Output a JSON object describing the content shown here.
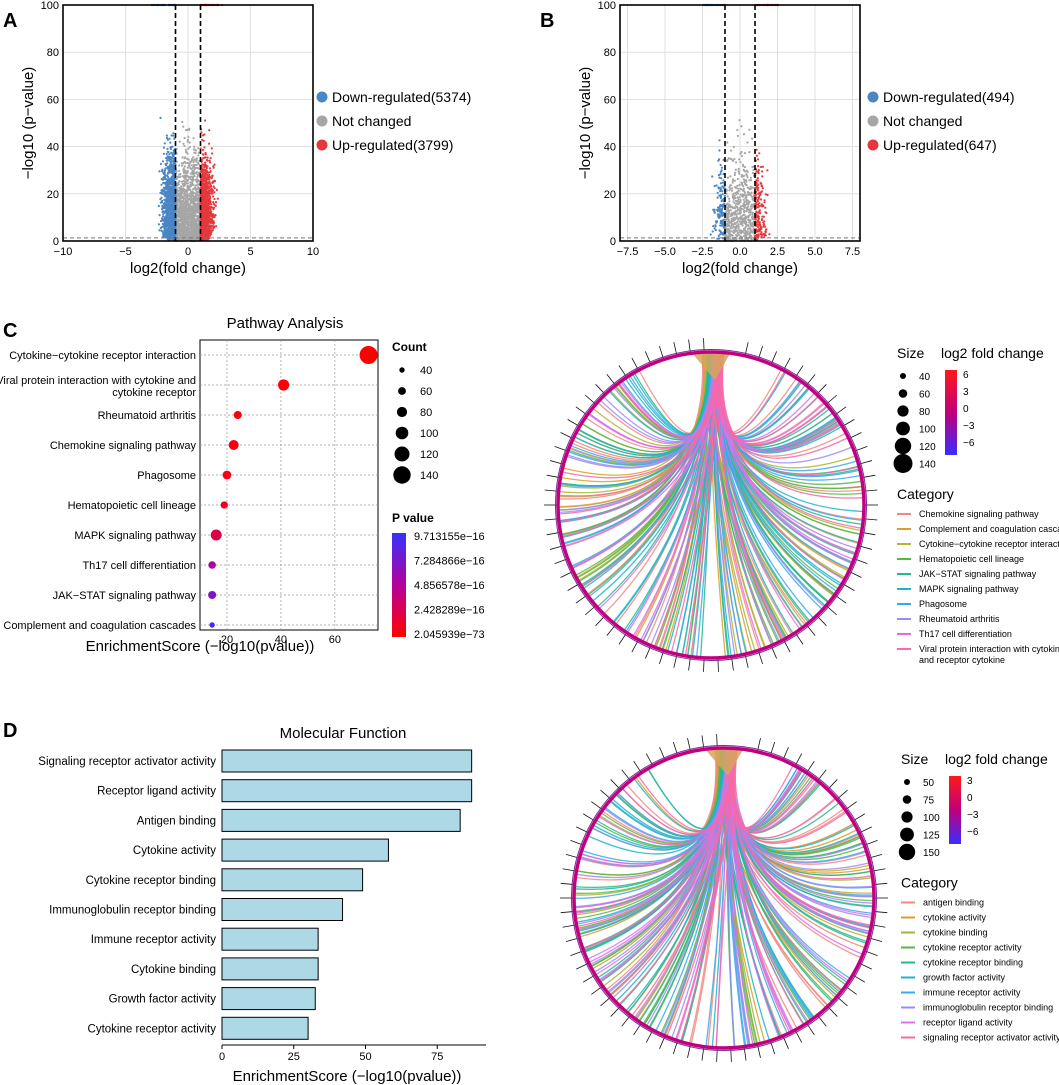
{
  "colors": {
    "down": "#4a86c5",
    "not_changed": "#a6a6a6",
    "up": "#e3383d",
    "bar_fill": "#add8e6",
    "pvalue_high": "#3333ff",
    "pvalue_low": "#ff0000"
  },
  "chart_data": [
    {
      "panel": "A",
      "type": "scatter",
      "title": "",
      "xlabel": "log2(fold change)",
      "ylabel": "−log10 (p−value)",
      "xlim": [
        -10,
        10
      ],
      "ylim": [
        0,
        100
      ],
      "xticks": [
        "−10",
        "−5",
        "0",
        "5",
        "10"
      ],
      "yticks": [
        "0",
        "20",
        "40",
        "60",
        "80",
        "100"
      ],
      "thresholds": {
        "fold_change": [
          -1,
          1
        ],
        "pvalue": 1.3
      },
      "legend": [
        {
          "label": "Down-regulated(5374)",
          "color": "#4a86c5"
        },
        {
          "label": "Not changed",
          "color": "#a6a6a6"
        },
        {
          "label": "Up-regulated(3799)",
          "color": "#e3383d"
        }
      ],
      "series": [
        {
          "name": "Down-regulated",
          "count": 5374
        },
        {
          "name": "Not changed"
        },
        {
          "name": "Up-regulated",
          "count": 3799
        }
      ]
    },
    {
      "panel": "B",
      "type": "scatter",
      "title": "",
      "xlabel": "log2(fold change)",
      "ylabel": "−log10 (p−value)",
      "xlim": [
        -8,
        8
      ],
      "ylim": [
        0,
        100
      ],
      "xticks": [
        "−7.5",
        "−5.0",
        "−2.5",
        "0.0",
        "2.5",
        "5.0",
        "7.5"
      ],
      "yticks": [
        "0",
        "20",
        "40",
        "60",
        "80",
        "100"
      ],
      "thresholds": {
        "fold_change": [
          -1,
          1
        ],
        "pvalue": 1.3
      },
      "legend": [
        {
          "label": "Down-regulated(494)",
          "color": "#4a86c5"
        },
        {
          "label": "Not changed",
          "color": "#a6a6a6"
        },
        {
          "label": "Up-regulated(647)",
          "color": "#e3383d"
        }
      ],
      "series": [
        {
          "name": "Down-regulated",
          "count": 494
        },
        {
          "name": "Not changed"
        },
        {
          "name": "Up-regulated",
          "count": 647
        }
      ]
    },
    {
      "panel": "C",
      "type": "scatter",
      "title": "Pathway Analysis",
      "xlabel": "EnrichmentScore (−log10(pvalue))",
      "xlim": [
        10,
        76
      ],
      "xticks": [
        20,
        40,
        60
      ],
      "categories": [
        "Cytokine−cytokine receptor interaction",
        "Viral protein interaction with cytokine and cytokine receptor",
        "Rheumatoid arthritis",
        "Chemokine signaling pathway",
        "Phagosome",
        "Hematopoietic cell lineage",
        "MAPK signaling pathway",
        "Th17 cell differentiation",
        "JAK−STAT signaling pathway",
        "Complement and coagulation cascades"
      ],
      "values": [
        72.5,
        41,
        24,
        22.5,
        20,
        19,
        16,
        14.5,
        14.5,
        14.5
      ],
      "counts": [
        145,
        88,
        62,
        78,
        68,
        56,
        86,
        58,
        62,
        40
      ],
      "p_fraction": [
        0.0,
        0.02,
        0.03,
        0.05,
        0.08,
        0.12,
        0.22,
        0.55,
        0.72,
        0.95
      ],
      "size_legend_title": "Count",
      "size_legend": [
        "40",
        "60",
        "80",
        "100",
        "120",
        "140"
      ],
      "color_legend_title": "P value",
      "color_legend": [
        "9.713155e−16",
        "7.284866e−16",
        "4.856578e−16",
        "2.428289e−16",
        "2.045939e−73"
      ]
    },
    {
      "panel": "C-chord",
      "type": "chord",
      "size_legend_title": "Size",
      "size_legend": [
        "40",
        "60",
        "80",
        "100",
        "120",
        "140"
      ],
      "color_legend_title": "log2 fold change",
      "color_ticks": [
        "6",
        "3",
        "0",
        "−3",
        "−6"
      ],
      "category_title": "Category",
      "categories": [
        {
          "label": "Chemokine signaling pathway",
          "color": "#f08a80"
        },
        {
          "label": "Complement and coagulation cascades",
          "color": "#d6a12b"
        },
        {
          "label": "Cytokine−cytokine receptor interaction",
          "color": "#b0b437"
        },
        {
          "label": "Hematopoietic cell lineage",
          "color": "#56b745"
        },
        {
          "label": "JAK−STAT signaling pathway",
          "color": "#23b98e"
        },
        {
          "label": "MAPK signaling pathway",
          "color": "#1db5c8"
        },
        {
          "label": "Phagosome",
          "color": "#37a9ec"
        },
        {
          "label": "Rheumatoid arthritis",
          "color": "#9c8cf0"
        },
        {
          "label": "Th17 cell differentiation",
          "color": "#e06fe6"
        },
        {
          "label": "Viral protein interaction with cytokine and receptor cytokine",
          "color": "#f56aa8"
        }
      ]
    },
    {
      "panel": "D",
      "type": "bar",
      "orientation": "horizontal",
      "title": "Molecular Function",
      "xlabel": "EnrichmentScore (−log10(pvalue))",
      "xlim": [
        0,
        92
      ],
      "xticks": [
        0,
        25,
        50,
        75
      ],
      "categories": [
        "Signaling receptor activator activity",
        "Receptor ligand activity",
        "Antigen binding",
        "Cytokine activity",
        "Cytokine receptor binding",
        "Immunoglobulin receptor binding",
        "Immune receptor activity",
        "Cytokine binding",
        "Growth factor activity",
        "Cytokine receptor activity"
      ],
      "values": [
        87,
        87,
        83,
        58,
        49,
        42,
        33.5,
        33.5,
        32.5,
        30
      ]
    },
    {
      "panel": "D-chord",
      "type": "chord",
      "size_legend_title": "Size",
      "size_legend": [
        "50",
        "75",
        "100",
        "125",
        "150"
      ],
      "color_legend_title": "log2 fold change",
      "color_ticks": [
        "3",
        "0",
        "−3",
        "−6"
      ],
      "category_title": "Category",
      "categories": [
        {
          "label": "antigen binding",
          "color": "#f08a80"
        },
        {
          "label": "cytokine activity",
          "color": "#d6a12b"
        },
        {
          "label": "cytokine binding",
          "color": "#a9b336"
        },
        {
          "label": "cytokine receptor activity",
          "color": "#56b745"
        },
        {
          "label": "cytokine receptor binding",
          "color": "#23b98e"
        },
        {
          "label": "growth factor activity",
          "color": "#1db5c8"
        },
        {
          "label": "immune receptor activity",
          "color": "#37a9ec"
        },
        {
          "label": "immunoglobulin receptor binding",
          "color": "#9c8cf0"
        },
        {
          "label": "receptor ligand activity",
          "color": "#e06fe6"
        },
        {
          "label": "signaling receptor activator activity",
          "color": "#f56aa8"
        }
      ]
    }
  ],
  "panel_labels": [
    "A",
    "B",
    "C",
    "D"
  ]
}
